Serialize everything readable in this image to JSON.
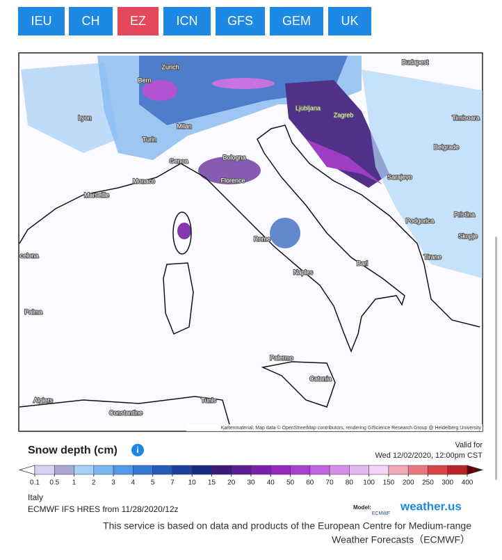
{
  "tabs": {
    "items": [
      "IEU",
      "CH",
      "EZ",
      "ICN",
      "GFS",
      "GEM",
      "UK"
    ],
    "active": 2
  },
  "map": {
    "cities": [
      "Zurich",
      "Bern",
      "Budapest",
      "Lyon",
      "Ljubljana",
      "Zagreb",
      "Timisoara",
      "Milan",
      "Turin",
      "Belgrade",
      "Genoa",
      "Bologna",
      "Sarajevo",
      "Monaco",
      "Florence",
      "Marseille",
      "Podgorica",
      "Pristina",
      "Skopje",
      "Rome",
      "Tirane",
      "Bari",
      "celona",
      "Naples",
      "Palma",
      "Palermo",
      "Catania",
      "Algiers",
      "Tunis",
      "Constantine"
    ],
    "attribution": "Kartenmaterial: Map data © OpenStreetMap contributors, rendering GIScience Research Group @ Heidelberg University"
  },
  "legend": {
    "title": "Snow depth (cm)",
    "valid_label": "Valid for",
    "valid_time": "Wed 12/02/2020, 12:00pm CST",
    "levels": [
      0.1,
      0.5,
      1,
      2,
      3,
      4,
      5,
      7,
      10,
      15,
      20,
      30,
      40,
      50,
      60,
      70,
      80,
      100,
      150,
      200,
      250,
      300,
      400
    ],
    "colors": [
      "#ffffff",
      "#d4d4f2",
      "#a9a9d3",
      "#a5d0f7",
      "#78b6f2",
      "#4f9aea",
      "#3479d6",
      "#275bba",
      "#1d409e",
      "#172c7c",
      "#3c1a7a",
      "#5b1d94",
      "#7a20aa",
      "#9528bd",
      "#ab40d0",
      "#c163e0",
      "#d48fe9",
      "#e6b8f1",
      "#f3d6f5",
      "#f2a6b6",
      "#ea7680",
      "#d84646",
      "#b82424",
      "#911212",
      "#5e0808"
    ]
  },
  "info": {
    "region": "Italy",
    "model_run": "ECMWF IFS HRES from 11/28/2020/12z",
    "model_label": "Model:",
    "ecmwf": "ECMWF",
    "brand": "weather.us"
  },
  "footer": {
    "line1": "This service is based on data and products of the European Centre for Medium-range",
    "line2": "Weather Forecasts（ECMWF）"
  }
}
